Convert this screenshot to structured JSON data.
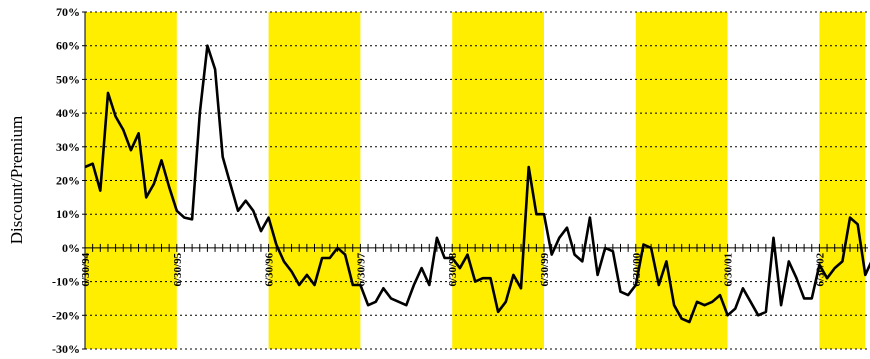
{
  "chart_data": {
    "type": "line",
    "title": "",
    "xlabel": "",
    "ylabel": "Discount/Premium",
    "ylim": [
      -30,
      70
    ],
    "yticks": [
      70,
      60,
      50,
      40,
      30,
      20,
      10,
      0,
      -10,
      -20,
      -30
    ],
    "ytick_labels": [
      "70%",
      "60%",
      "50%",
      "40%",
      "30%",
      "20%",
      "10%",
      "0%",
      "-10%",
      "-20%",
      "-30%"
    ],
    "grid": true,
    "line_color": "#000000",
    "band_color": "#ffee00",
    "x_tick_labels": [
      {
        "label": "6/30/94",
        "month": 0
      },
      {
        "label": "6/30/95",
        "month": 12
      },
      {
        "label": "6/30/96",
        "month": 24
      },
      {
        "label": "6/30/97",
        "month": 36
      },
      {
        "label": "6/30/98",
        "month": 48
      },
      {
        "label": "6/30/99",
        "month": 60
      },
      {
        "label": "6/30/00",
        "month": 72
      },
      {
        "label": "6/30/01",
        "month": 84
      },
      {
        "label": "6/30/02",
        "month": 96
      }
    ],
    "shaded_periods": [
      [
        0,
        12
      ],
      [
        24,
        36
      ],
      [
        48,
        60
      ],
      [
        72,
        84
      ],
      [
        96,
        102
      ]
    ],
    "series": [
      {
        "values": [
          24,
          25,
          17,
          46,
          39,
          35,
          29,
          34,
          15,
          19,
          26,
          18,
          11,
          9,
          8.5,
          40,
          60,
          53,
          27,
          19,
          11,
          14,
          11,
          5,
          9,
          1,
          -4,
          -7,
          -11,
          -8,
          -11,
          -3,
          -3,
          0,
          -2,
          -11,
          -11,
          -17,
          -16,
          -12,
          -15,
          -16,
          -17,
          -11,
          -6,
          -11,
          3,
          -3,
          -3,
          -6,
          -2,
          -10,
          -9,
          -9,
          -19,
          -16,
          -8,
          -12,
          24,
          10,
          10,
          -2,
          3,
          6,
          -2,
          -4,
          9,
          -8,
          0,
          -1,
          -13,
          -14,
          -11,
          1,
          0,
          -11,
          -4,
          -17,
          -21,
          -22,
          -16,
          -17,
          -16,
          -14,
          -20,
          -18,
          -12,
          -16,
          -20,
          -19,
          3,
          -17,
          -4,
          -9,
          -15,
          -15,
          -5,
          -9,
          -6,
          -4,
          9,
          7,
          -8,
          -3
        ]
      }
    ]
  }
}
